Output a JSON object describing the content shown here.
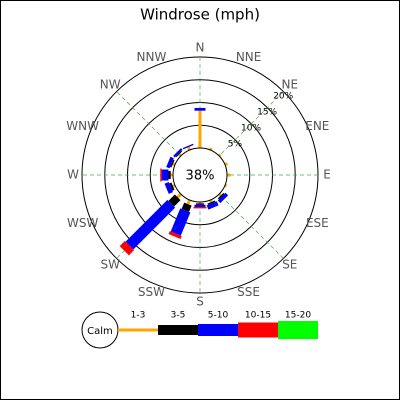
{
  "chart_data": {
    "type": "windrose",
    "title": "Windrose (mph)",
    "directions": [
      "N",
      "NNE",
      "NE",
      "ENE",
      "E",
      "ESE",
      "SE",
      "SSE",
      "S",
      "SSW",
      "SW",
      "WSW",
      "W",
      "WNW",
      "NW",
      "NNW"
    ],
    "calm": {
      "label": "Calm",
      "value": 38,
      "value_label": "38%"
    },
    "series": [
      {
        "name": "1-3",
        "color": "#ffa500",
        "values": [
          8.2,
          0.5,
          0.4,
          0.6,
          0.8,
          0.4,
          0.5,
          0.5,
          0.3,
          1,
          1,
          0.5,
          0.5,
          0.5,
          0.5,
          0.7
        ]
      },
      {
        "name": "3-5",
        "color": "#000000",
        "values": [
          0,
          0,
          0,
          0,
          0,
          0,
          0.3,
          0.3,
          0.3,
          1.5,
          2,
          0.5,
          0.5,
          0.3,
          0.2,
          0
        ]
      },
      {
        "name": "5-10",
        "color": "#0000ff",
        "values": [
          0.6,
          0,
          0,
          0,
          0,
          0,
          0.8,
          1,
          0.5,
          5.5,
          13,
          1,
          1.5,
          0.8,
          0.5,
          0.3
        ]
      },
      {
        "name": "10-15",
        "color": "#ff0000",
        "values": [
          0,
          0,
          0,
          0,
          0,
          0,
          0,
          0,
          0.3,
          0.7,
          1.6,
          0,
          0.3,
          0,
          0,
          0
        ]
      },
      {
        "name": "15-20",
        "color": "#00ff00",
        "values": [
          0,
          0,
          0,
          0,
          0,
          0,
          0,
          0,
          0,
          0,
          0,
          0,
          0,
          0,
          0,
          0
        ]
      }
    ],
    "rlim": [
      0,
      20
    ],
    "rticks": [
      {
        "value": 5,
        "label": "5%"
      },
      {
        "value": 10,
        "label": "10%"
      },
      {
        "value": 15,
        "label": "15%"
      },
      {
        "value": 20,
        "label": "20%"
      }
    ],
    "grid": true
  }
}
